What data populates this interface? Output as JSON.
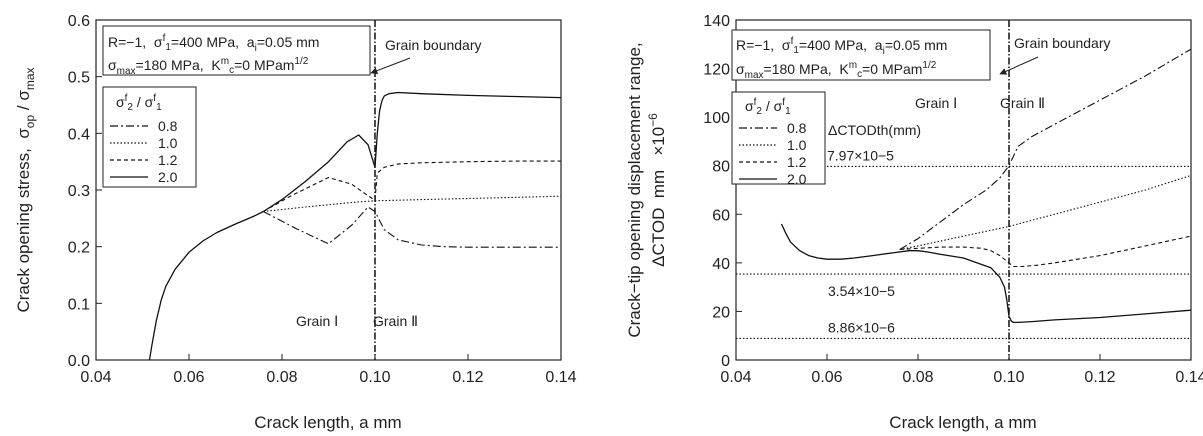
{
  "chart_data": [
    {
      "type": "line",
      "xlabel": "Crack length, a mm",
      "ylabel": "Crack opening stress,  σop / σmax",
      "xlim": [
        0.04,
        0.14
      ],
      "ylim": [
        0.0,
        0.6
      ],
      "xticks": [
        "0.04",
        "0.06",
        "0.08",
        "0.10",
        "0.12",
        "0.14"
      ],
      "yticks": [
        "0.0",
        "0.1",
        "0.2",
        "0.3",
        "0.4",
        "0.5",
        "0.6"
      ],
      "xtick_values": [
        0.04,
        0.06,
        0.08,
        0.1,
        0.12,
        0.14
      ],
      "ytick_values": [
        0.0,
        0.1,
        0.2,
        0.3,
        0.4,
        0.5,
        0.6
      ],
      "params_line1": "R=−1,  σf1=400 MPa,  ai=0.05 mm",
      "params_line2": "σmax=180 MPa,  Kmc=0 MPam1/2",
      "legend_title": "σf2 / σf1",
      "legend_position": "upper-left",
      "grain_boundary_label": "Grain boundary",
      "grain_boundary_x": 0.1,
      "grain1_label": "Grain Ⅰ",
      "grain2_label": "Grain Ⅱ",
      "series": [
        {
          "name": "0.8",
          "dash": "8,3,2,3",
          "x": [
            0.076,
            0.083,
            0.09,
            0.095,
            0.0985,
            0.1,
            0.102,
            0.105,
            0.11,
            0.115,
            0.12,
            0.13,
            0.14
          ],
          "y": [
            0.262,
            0.232,
            0.205,
            0.238,
            0.27,
            0.262,
            0.23,
            0.212,
            0.203,
            0.2,
            0.199,
            0.199,
            0.199
          ]
        },
        {
          "name": "1.0",
          "dash": "1.5,2",
          "x": [
            0.076,
            0.085,
            0.095,
            0.1,
            0.11,
            0.12,
            0.13,
            0.14
          ],
          "y": [
            0.262,
            0.27,
            0.278,
            0.281,
            0.283,
            0.285,
            0.287,
            0.289
          ]
        },
        {
          "name": "1.2",
          "dash": "4,3",
          "x": [
            0.076,
            0.082,
            0.09,
            0.095,
            0.0985,
            0.1,
            0.1005,
            0.102,
            0.105,
            0.11,
            0.12,
            0.13,
            0.14
          ],
          "y": [
            0.262,
            0.29,
            0.322,
            0.31,
            0.29,
            0.282,
            0.33,
            0.34,
            0.346,
            0.348,
            0.35,
            0.351,
            0.351
          ]
        },
        {
          "name": "2.0",
          "dash": "",
          "x": [
            0.0515,
            0.052,
            0.053,
            0.054,
            0.055,
            0.057,
            0.06,
            0.063,
            0.066,
            0.07,
            0.074,
            0.076,
            0.08,
            0.085,
            0.09,
            0.094,
            0.0965,
            0.0985,
            0.1,
            0.1005,
            0.101,
            0.1015,
            0.102,
            0.103,
            0.105,
            0.11,
            0.12,
            0.13,
            0.14
          ],
          "y": [
            0.0,
            0.025,
            0.07,
            0.105,
            0.13,
            0.16,
            0.19,
            0.21,
            0.225,
            0.24,
            0.254,
            0.262,
            0.283,
            0.315,
            0.35,
            0.385,
            0.397,
            0.38,
            0.34,
            0.4,
            0.44,
            0.458,
            0.466,
            0.47,
            0.472,
            0.47,
            0.467,
            0.465,
            0.463
          ]
        }
      ]
    },
    {
      "type": "line",
      "xlabel": "Crack length, a mm",
      "ylabel_line1": "Crack−tip opening displacement range,",
      "ylabel_line2": "ΔCTOD  mm  ×10−6",
      "xlim": [
        0.04,
        0.14
      ],
      "ylim": [
        0,
        140
      ],
      "xticks": [
        "0.04",
        "0.06",
        "0.08",
        "0.10",
        "0.12",
        "0.14"
      ],
      "yticks": [
        "0",
        "20",
        "40",
        "60",
        "80",
        "100",
        "120",
        "140"
      ],
      "xtick_values": [
        0.04,
        0.06,
        0.08,
        0.1,
        0.12,
        0.14
      ],
      "ytick_values": [
        0,
        20,
        40,
        60,
        80,
        100,
        120,
        140
      ],
      "params_line1": "R=−1,  σf1=400 MPa,  ai=0.05 mm",
      "params_line2": "σmax=180 MPa,  Kmc=0 MPam1/2",
      "legend_title": "σf2 / σf1",
      "legend_position": "upper-left",
      "grain_boundary_label": "Grain boundary",
      "grain_boundary_x": 0.1,
      "grain1_label": "Grain Ⅰ",
      "grain2_label": "Grain Ⅱ",
      "threshold_header": "ΔCTODth(mm)",
      "thresholds": [
        {
          "label": "7.97×10−5",
          "value": 79.7
        },
        {
          "label": "3.54×10−5",
          "value": 35.4
        },
        {
          "label": "8.86×10−6",
          "value": 8.86
        }
      ],
      "series": [
        {
          "name": "0.8",
          "dash": "8,3,2,3",
          "x": [
            0.076,
            0.08,
            0.085,
            0.09,
            0.095,
            0.098,
            0.1,
            0.102,
            0.105,
            0.11,
            0.12,
            0.13,
            0.14
          ],
          "y": [
            45.5,
            50,
            57,
            64,
            70,
            75,
            80,
            88,
            92,
            97,
            107,
            117,
            128
          ]
        },
        {
          "name": "1.0",
          "dash": "1.5,2",
          "x": [
            0.076,
            0.08,
            0.085,
            0.09,
            0.095,
            0.1,
            0.11,
            0.12,
            0.13,
            0.14
          ],
          "y": [
            45.5,
            47,
            49,
            51,
            53,
            55,
            60,
            65,
            70,
            76
          ]
        },
        {
          "name": "1.2",
          "dash": "4,3",
          "x": [
            0.076,
            0.08,
            0.085,
            0.09,
            0.094,
            0.096,
            0.098,
            0.1,
            0.101,
            0.103,
            0.106,
            0.11,
            0.12,
            0.13,
            0.14
          ],
          "y": [
            45.5,
            46,
            46.5,
            46.5,
            46,
            45,
            43,
            40,
            38.5,
            38.5,
            39,
            40,
            43,
            47,
            51
          ]
        },
        {
          "name": "2.0",
          "dash": "",
          "x": [
            0.05,
            0.051,
            0.052,
            0.054,
            0.056,
            0.058,
            0.06,
            0.063,
            0.066,
            0.07,
            0.074,
            0.078,
            0.08,
            0.082,
            0.085,
            0.09,
            0.093,
            0.096,
            0.098,
            0.099,
            0.0995,
            0.1,
            0.1005,
            0.101,
            0.102,
            0.105,
            0.11,
            0.12,
            0.13,
            0.14
          ],
          "y": [
            56,
            52,
            48.5,
            45,
            43,
            42,
            41.5,
            41.5,
            42,
            43,
            44,
            45,
            45,
            44.5,
            43.5,
            42,
            40,
            38,
            34,
            30,
            25,
            18,
            16,
            15.5,
            15.5,
            15.8,
            16.5,
            17.5,
            19,
            20.5
          ]
        }
      ]
    }
  ]
}
